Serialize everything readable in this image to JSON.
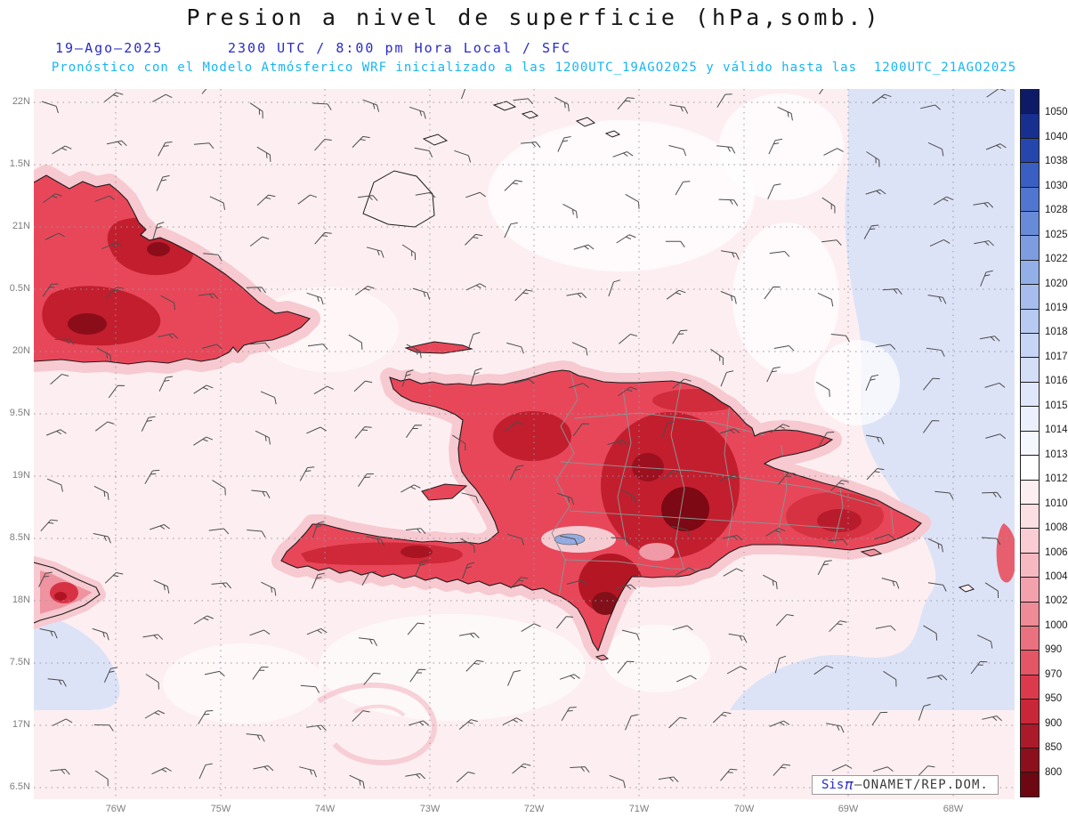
{
  "title": "Presion a nivel de superficie (hPa,somb.)",
  "subtitle": {
    "date": "19–Ago–2025",
    "time": "2300 UTC / 8:00 pm Hora Local / SFC",
    "forecast": "Pronóstico con el Modelo Atmósferico WRF inicializado a las 1200UTC_19AGO2025 y válido hasta las  1200UTC_21AGO2025"
  },
  "map": {
    "lat_labels": [
      "22N",
      "1.5N",
      "21N",
      "0.5N",
      "20N",
      "9.5N",
      "19N",
      "8.5N",
      "18N",
      "7.5N",
      "17N",
      "6.5N"
    ],
    "lon_labels": [
      "76W",
      "75W",
      "74W",
      "73W",
      "72W",
      "71W",
      "70W",
      "69W",
      "68W"
    ]
  },
  "colorbar": {
    "labels": [
      "1050",
      "1040",
      "1038",
      "1030",
      "1028",
      "1025",
      "1022",
      "1020",
      "1019",
      "1018",
      "1017",
      "1016",
      "1015",
      "1014",
      "1013",
      "1012",
      "1010",
      "1008",
      "1006",
      "1004",
      "1002",
      "1000",
      "990",
      "970",
      "950",
      "900",
      "850",
      "800"
    ],
    "colors": [
      "#0d1a66",
      "#172f8f",
      "#2547ad",
      "#3a5fc2",
      "#5176cf",
      "#688bd9",
      "#7e9de1",
      "#93afe8",
      "#a6bdee",
      "#b7caf2",
      "#c6d4f5",
      "#d4def7",
      "#e0e7fa",
      "#ebf0fc",
      "#f5f7fe",
      "#ffffff",
      "#fdeff1",
      "#fbdfe3",
      "#f9cdd3",
      "#f6b9c1",
      "#f3a2ad",
      "#ef8b97",
      "#ea7280",
      "#e45666",
      "#dc3a4c",
      "#c92738",
      "#ab1a29",
      "#8c101c",
      "#6d0812"
    ]
  },
  "credit": {
    "prefix": "Sis",
    "pi": "π",
    "separator": "– ",
    "organization": "ONAMET/REP.DOM."
  },
  "chart_data": {
    "type": "heatmap",
    "title": "Presion a nivel de superficie (hPa,somb.)",
    "valid_time": "19–Ago–2025 2300 UTC / 8:00 pm Hora Local / SFC",
    "model": "WRF inicializado a las 1200UTC_19AGO2025, válido hasta las 1200UTC_21AGO2025",
    "x_ticks": [
      "76W",
      "75W",
      "74W",
      "73W",
      "72W",
      "71W",
      "70W",
      "69W",
      "68W"
    ],
    "y_ticks": [
      "22N",
      "1.5N",
      "21N",
      "0.5N",
      "20N",
      "9.5N",
      "19N",
      "8.5N",
      "18N",
      "7.5N",
      "17N",
      "6.5N"
    ],
    "colorbar_levels_hpa": [
      1050,
      1040,
      1038,
      1030,
      1028,
      1025,
      1022,
      1020,
      1019,
      1018,
      1017,
      1016,
      1015,
      1014,
      1013,
      1012,
      1010,
      1008,
      1006,
      1004,
      1002,
      1000,
      990,
      970,
      950,
      900,
      850,
      800
    ],
    "legend_position": "right",
    "grid": "dotted, 0.5 deg latitude x 1 deg longitude",
    "field_description": {
      "low_pressure_shading_red": [
        "eastern Cuba",
        "Hispaniola interior, strongest over the central Dominican cordillera",
        "southern Haiti (Tiburon) peninsula",
        "eastern tip of Jamaica",
        "narrow strip at the eastern map edge"
      ],
      "high_pressure_shading_blue": [
        "Atlantic and Caribbean east of about 69W",
        "bottom-left corner of the domain",
        "Lago Enriquillo shown as a small blue lake"
      ],
      "wind_overlay": "station wind barbs of roughly 5-15 kt covering the whole domain"
    }
  }
}
